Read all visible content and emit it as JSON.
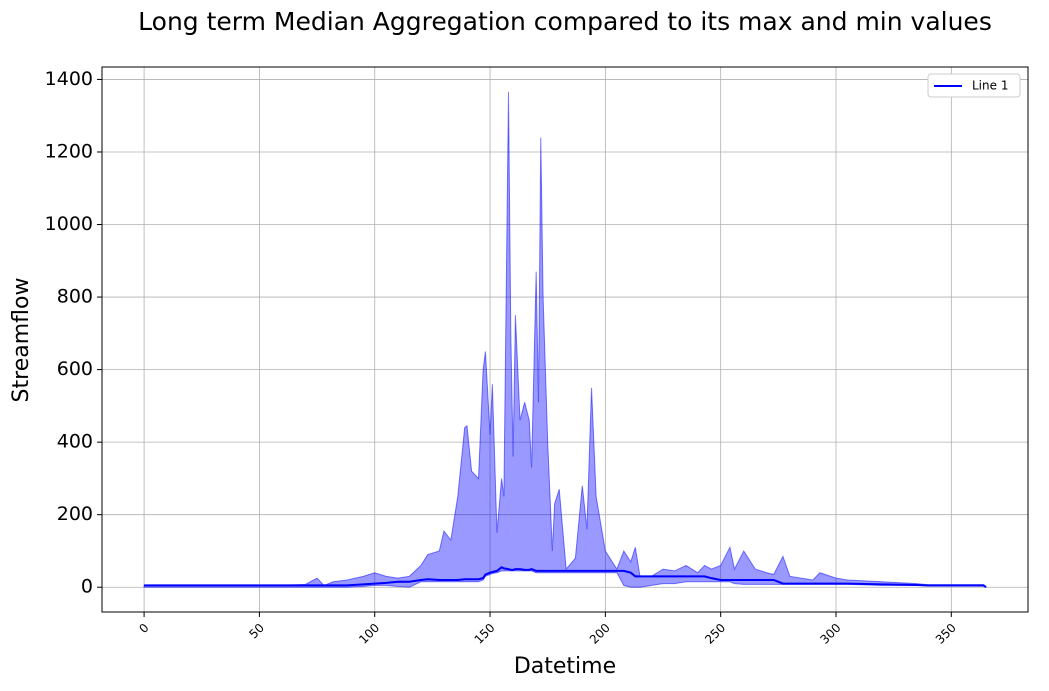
{
  "chart_data": {
    "type": "line",
    "title": "Long term Median Aggregation compared to its max and min values",
    "xlabel": "Datetime",
    "ylabel": "Streamflow",
    "x": [
      0,
      20,
      40,
      60,
      70,
      75,
      78,
      82,
      88,
      95,
      100,
      105,
      110,
      115,
      120,
      123,
      128,
      130,
      133,
      136,
      139,
      140,
      142,
      145,
      147,
      148,
      150,
      151,
      153,
      155,
      156,
      158,
      159,
      160,
      161,
      163,
      165,
      167,
      168,
      170,
      171,
      172,
      173,
      175,
      177,
      178,
      180,
      183,
      187,
      190,
      192,
      194,
      196,
      200,
      205,
      208,
      211,
      213,
      215,
      220,
      225,
      230,
      235,
      240,
      243,
      246,
      250,
      254,
      256,
      260,
      265,
      270,
      273,
      277,
      280,
      290,
      293,
      300,
      305,
      320,
      335,
      340,
      364,
      365
    ],
    "series": [
      {
        "name": "Line 1",
        "color": "#0000ff",
        "values": [
          5,
          5,
          5,
          5,
          5,
          5,
          5,
          5,
          5,
          8,
          10,
          12,
          15,
          15,
          20,
          22,
          20,
          20,
          20,
          20,
          22,
          22,
          22,
          22,
          25,
          35,
          40,
          42,
          45,
          55,
          52,
          50,
          48,
          48,
          50,
          50,
          48,
          48,
          50,
          45,
          45,
          45,
          45,
          45,
          45,
          45,
          45,
          45,
          45,
          45,
          45,
          45,
          45,
          45,
          45,
          45,
          40,
          30,
          30,
          30,
          30,
          30,
          30,
          30,
          30,
          25,
          20,
          20,
          20,
          20,
          20,
          20,
          20,
          10,
          10,
          10,
          10,
          10,
          10,
          8,
          6,
          5,
          5,
          0
        ]
      }
    ],
    "band": {
      "color": "#0000ff",
      "lower": [
        0,
        0,
        0,
        0,
        0,
        0,
        0,
        0,
        0,
        2,
        5,
        5,
        2,
        0,
        15,
        15,
        15,
        15,
        15,
        15,
        15,
        15,
        15,
        15,
        20,
        30,
        35,
        38,
        40,
        45,
        45,
        45,
        45,
        45,
        45,
        45,
        45,
        45,
        45,
        40,
        40,
        40,
        40,
        40,
        40,
        40,
        40,
        40,
        40,
        40,
        40,
        40,
        40,
        40,
        40,
        5,
        0,
        0,
        0,
        5,
        10,
        10,
        15,
        15,
        15,
        15,
        15,
        15,
        10,
        8,
        8,
        8,
        8,
        8,
        8,
        8,
        8,
        8,
        8,
        5,
        5,
        3,
        3,
        0
      ],
      "upper": [
        5,
        5,
        5,
        5,
        8,
        25,
        5,
        15,
        20,
        30,
        40,
        30,
        25,
        30,
        60,
        90,
        100,
        155,
        130,
        250,
        440,
        445,
        320,
        300,
        600,
        650,
        420,
        560,
        150,
        300,
        250,
        1366,
        700,
        360,
        750,
        460,
        510,
        460,
        330,
        870,
        510,
        1240,
        800,
        400,
        100,
        230,
        270,
        50,
        80,
        280,
        160,
        550,
        250,
        100,
        50,
        100,
        70,
        110,
        30,
        30,
        50,
        45,
        60,
        40,
        60,
        50,
        60,
        110,
        50,
        100,
        50,
        40,
        35,
        85,
        30,
        20,
        40,
        25,
        20,
        15,
        10,
        7,
        7,
        2
      ]
    },
    "xlim": [
      -18.25,
      383.25
    ],
    "ylim": [
      -68.3,
      1434.3
    ],
    "xticks": [
      0,
      50,
      100,
      150,
      200,
      250,
      300,
      350
    ],
    "yticks": [
      0,
      200,
      400,
      600,
      800,
      1000,
      1200,
      1400
    ],
    "grid": true,
    "legend": "upper right"
  }
}
